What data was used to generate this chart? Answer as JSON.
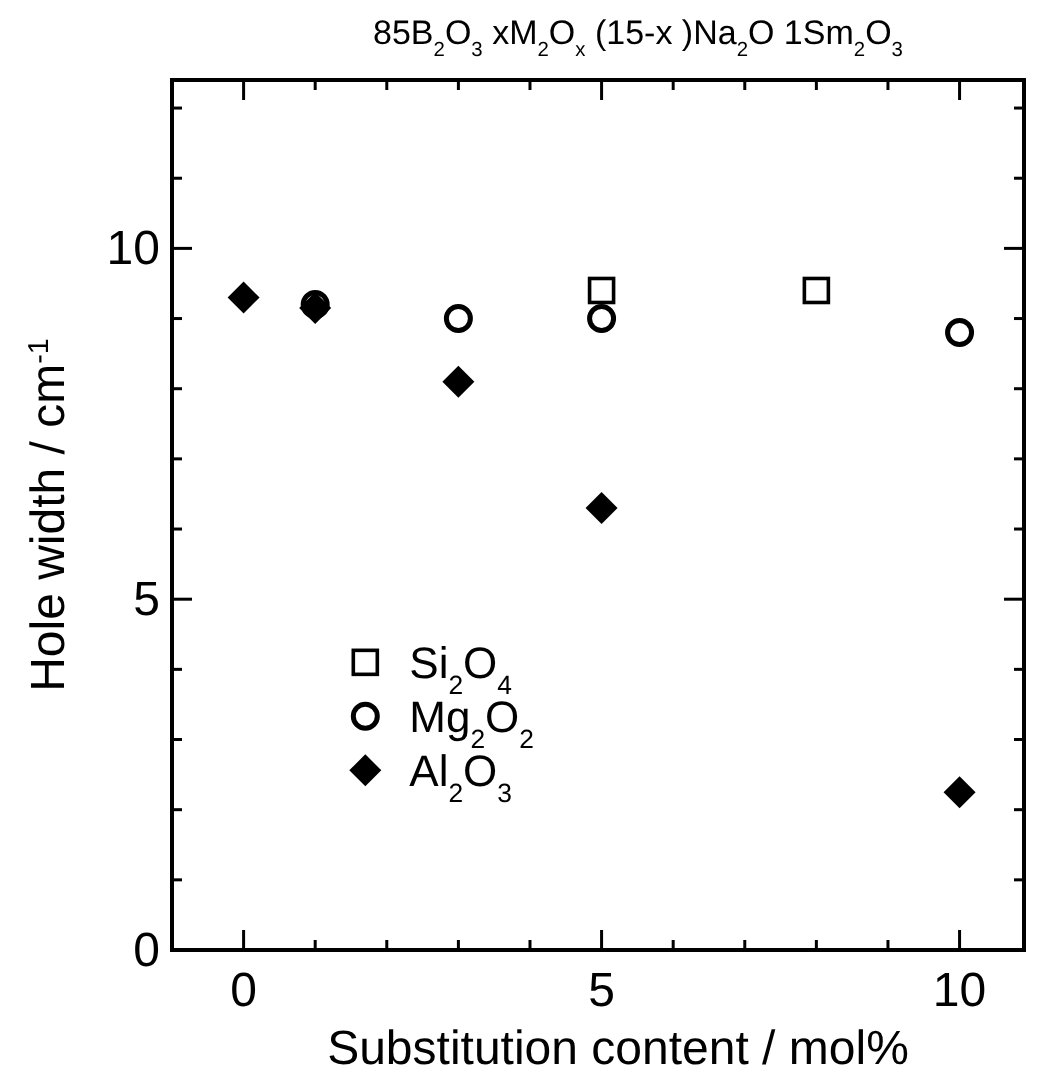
{
  "chart_data": {
    "type": "scatter",
    "title": "85B$_{2}$O$_{3}$ xM$_{2}$O$_{x}$ (15-x )Na$_{2}$O 1Sm$_{2}$O$_{3}$",
    "xlabel": "Substitution content  /  mol%",
    "ylabel": "Hole width  /  cm$^{-1}$",
    "xlim": [
      -1,
      10.9
    ],
    "ylim": [
      0,
      12.4
    ],
    "xticks": [
      0,
      {
        "value": 1,
        "label": null
      },
      {
        "value": 2,
        "label": null
      },
      {
        "value": 3,
        "label": null
      },
      {
        "value": 4,
        "label": null
      },
      5,
      {
        "value": 6,
        "label": null
      },
      {
        "value": 7,
        "label": null
      },
      {
        "value": 8,
        "label": null
      },
      {
        "value": 9,
        "label": null
      },
      10
    ],
    "yticks": [
      0,
      {
        "value": 1,
        "label": null
      },
      {
        "value": 2,
        "label": null
      },
      {
        "value": 3,
        "label": null
      },
      {
        "value": 4,
        "label": null
      },
      5,
      {
        "value": 6,
        "label": null
      },
      {
        "value": 7,
        "label": null
      },
      {
        "value": 8,
        "label": null
      },
      {
        "value": 9,
        "label": null
      },
      10,
      {
        "value": 11,
        "label": null
      },
      {
        "value": 12,
        "label": null
      }
    ],
    "grid": false,
    "legend": "bottom left",
    "series": [
      {
        "name": "Si$_{2}$O$_{4}$",
        "color": "#000000",
        "marker": "square",
        "x": [
          5,
          8
        ],
        "values": [
          9.4,
          9.4
        ]
      },
      {
        "name": "Mg$_{2}$O$_{2}$",
        "color": "#000000",
        "marker": "circle",
        "x": [
          1,
          3,
          5,
          10
        ],
        "values": [
          9.2,
          9.0,
          9.0,
          8.8
        ]
      },
      {
        "name": "Al$_{2}$O$_{3}$",
        "color": "#000000",
        "marker": "diamond",
        "x": [
          0,
          1,
          3,
          5,
          10
        ],
        "values": [
          9.3,
          9.15,
          8.1,
          6.3,
          2.25
        ]
      }
    ]
  }
}
